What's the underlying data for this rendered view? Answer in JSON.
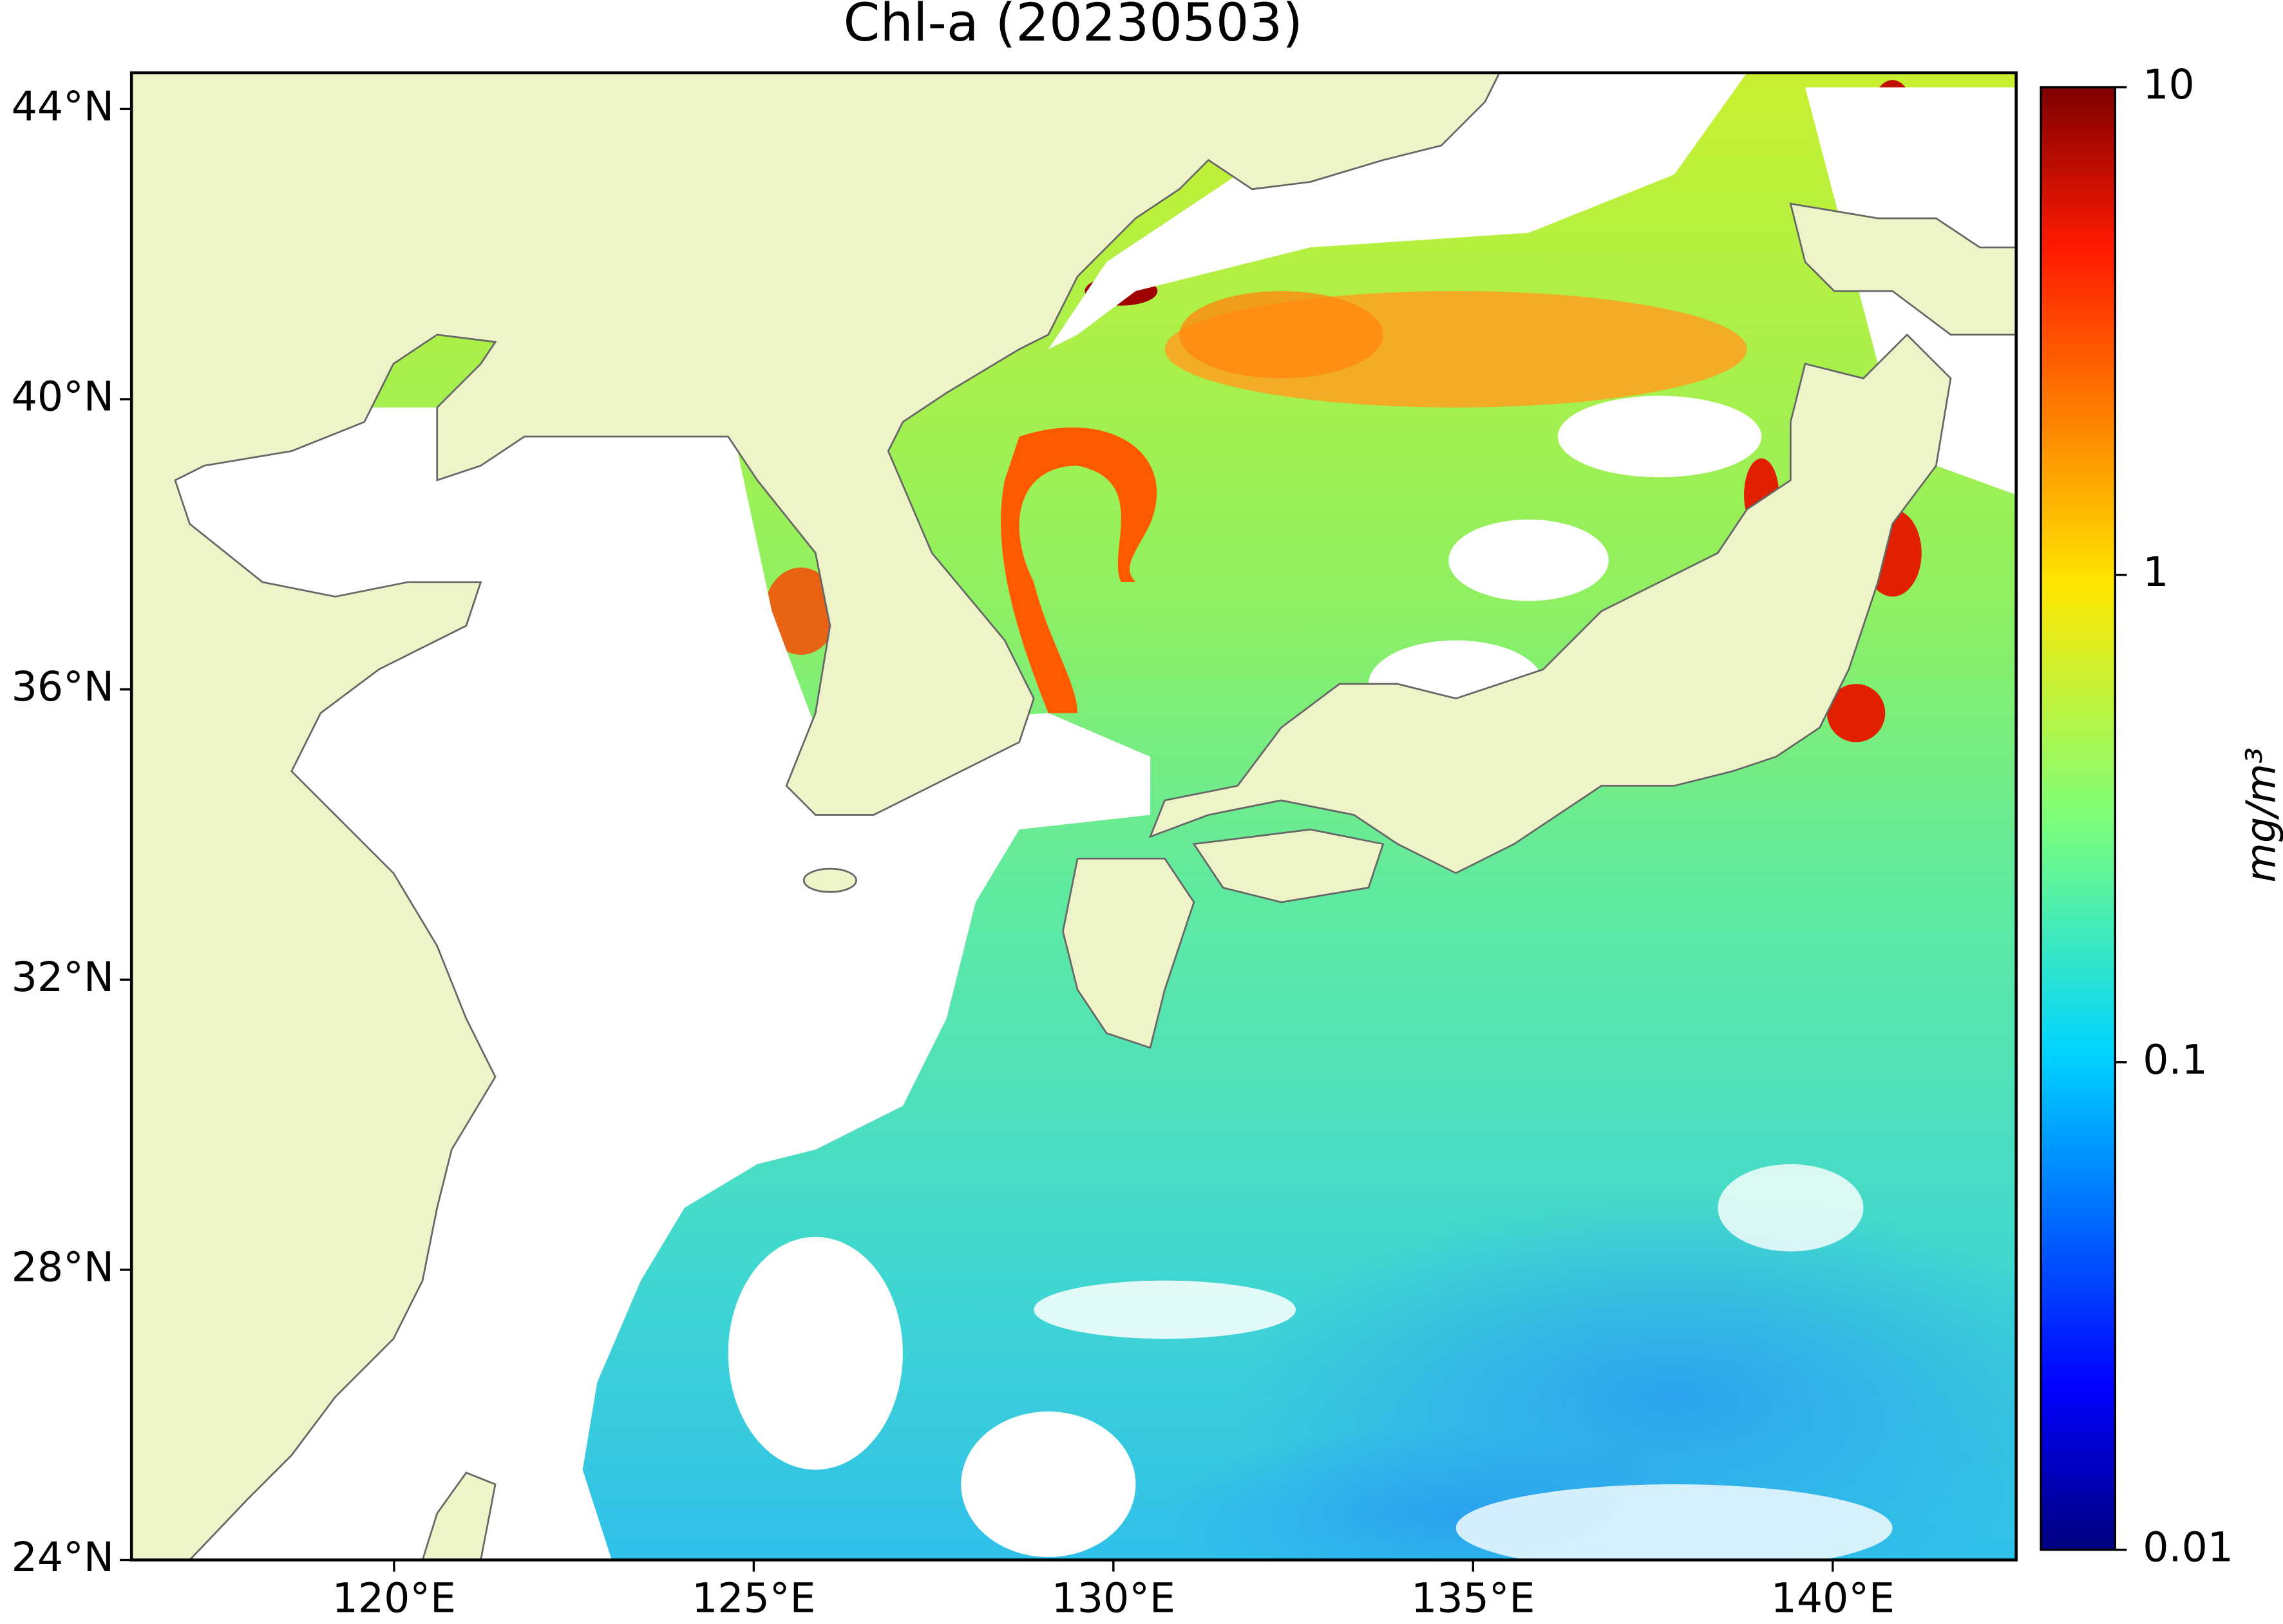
{
  "chart_data": {
    "type": "map",
    "title": "Chl-a (20230503)",
    "xlim": [
      116.35,
      142.55
    ],
    "ylim": [
      24,
      44.5
    ],
    "xticks": [
      {
        "value": 120,
        "label": "120°E"
      },
      {
        "value": 125,
        "label": "125°E"
      },
      {
        "value": 130,
        "label": "130°E"
      },
      {
        "value": 135,
        "label": "135°E"
      },
      {
        "value": 140,
        "label": "140°E"
      }
    ],
    "yticks": [
      {
        "value": 24,
        "label": "24°N"
      },
      {
        "value": 28,
        "label": "28°N"
      },
      {
        "value": 32,
        "label": "32°N"
      },
      {
        "value": 36,
        "label": "36°N"
      },
      {
        "value": 40,
        "label": "40°N"
      },
      {
        "value": 44,
        "label": "44°N"
      }
    ],
    "colorbar": {
      "scale": "log",
      "lim": [
        0.01,
        10
      ],
      "ticks": [
        0.01,
        0.1,
        1,
        10
      ],
      "label": "mg/m³"
    }
  }
}
